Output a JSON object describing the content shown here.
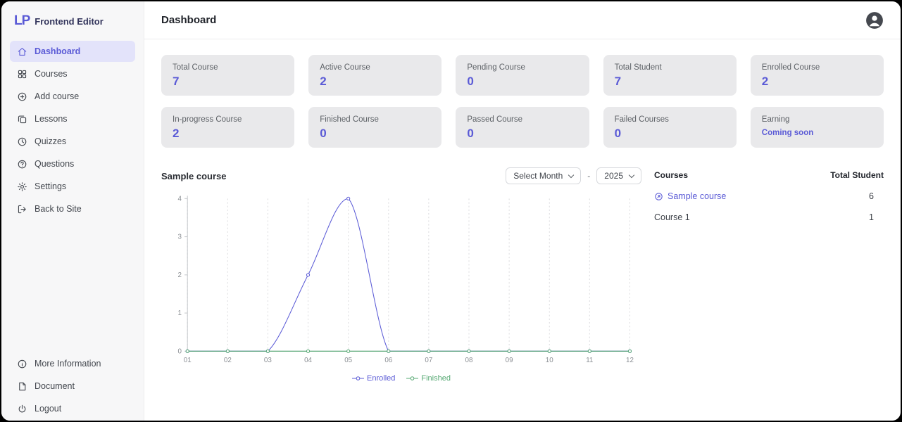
{
  "app": {
    "logo": "LP",
    "brand": "Frontend Editor",
    "accent_color": "#5a5ad6"
  },
  "header": {
    "title": "Dashboard"
  },
  "sidebar": {
    "items": [
      {
        "label": "Dashboard",
        "icon": "home-icon",
        "active": true
      },
      {
        "label": "Courses",
        "icon": "grid-icon",
        "active": false
      },
      {
        "label": "Add course",
        "icon": "plus-circle-icon",
        "active": false
      },
      {
        "label": "Lessons",
        "icon": "copy-icon",
        "active": false
      },
      {
        "label": "Quizzes",
        "icon": "clock-icon",
        "active": false
      },
      {
        "label": "Questions",
        "icon": "question-circle-icon",
        "active": false
      },
      {
        "label": "Settings",
        "icon": "gear-icon",
        "active": false
      },
      {
        "label": "Back to Site",
        "icon": "exit-icon",
        "active": false
      }
    ],
    "footer": [
      {
        "label": "More Information",
        "icon": "info-circle-icon"
      },
      {
        "label": "Document",
        "icon": "document-icon"
      },
      {
        "label": "Logout",
        "icon": "power-icon"
      }
    ]
  },
  "stats": [
    {
      "label": "Total Course",
      "value": "7"
    },
    {
      "label": "Active Course",
      "value": "2"
    },
    {
      "label": "Pending Course",
      "value": "0"
    },
    {
      "label": "Total Student",
      "value": "7"
    },
    {
      "label": "Enrolled Course",
      "value": "2"
    },
    {
      "label": "In-progress Course",
      "value": "2"
    },
    {
      "label": "Finished Course",
      "value": "0"
    },
    {
      "label": "Passed Course",
      "value": "0"
    },
    {
      "label": "Failed Courses",
      "value": "0"
    },
    {
      "label": "Earning",
      "value": "Coming soon"
    }
  ],
  "chart_section": {
    "title": "Sample course",
    "month_label": "Select Month",
    "separator": "-",
    "year_label": "2025"
  },
  "chart_data": {
    "type": "line",
    "title": "Sample course",
    "x": [
      "01",
      "02",
      "03",
      "04",
      "05",
      "06",
      "07",
      "08",
      "09",
      "10",
      "11",
      "12"
    ],
    "series": [
      {
        "name": "Enrolled",
        "color": "#5a5ad6",
        "values": [
          0,
          0,
          0,
          2,
          4,
          0,
          0,
          0,
          0,
          0,
          0,
          0
        ]
      },
      {
        "name": "Finished",
        "color": "#55a872",
        "values": [
          0,
          0,
          0,
          0,
          0,
          0,
          0,
          0,
          0,
          0,
          0,
          0
        ]
      }
    ],
    "ylim": [
      0,
      4
    ],
    "yticks": [
      0,
      1,
      2,
      3,
      4
    ],
    "grid": true,
    "legend_position": "bottom"
  },
  "courses_panel": {
    "col_course": "Courses",
    "col_students": "Total Student",
    "rows": [
      {
        "name": "Sample course",
        "students": "6",
        "is_link": true
      },
      {
        "name": "Course 1",
        "students": "1",
        "is_link": false
      }
    ]
  }
}
